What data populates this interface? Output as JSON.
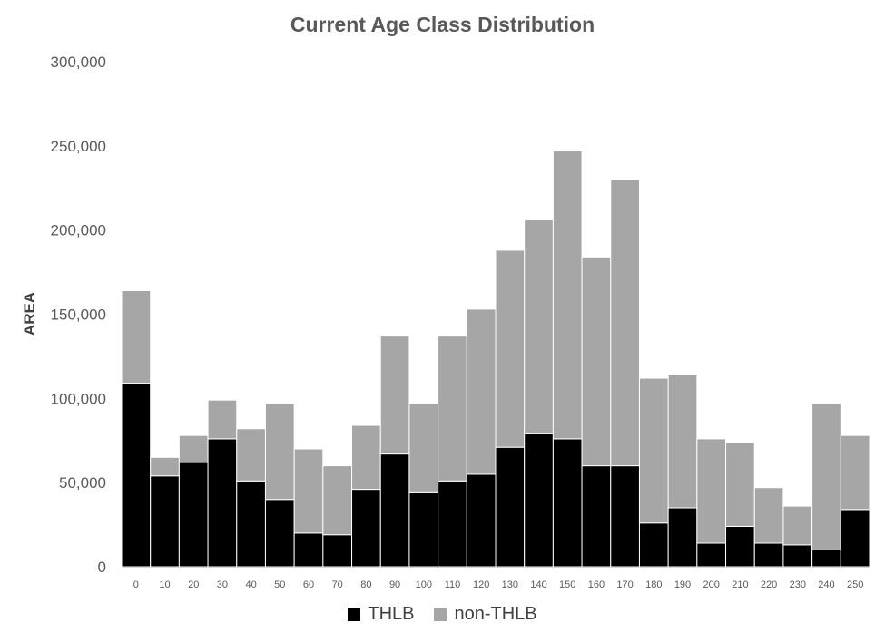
{
  "chart_data": {
    "type": "bar",
    "stacked": true,
    "title": "Current Age Class Distribution",
    "xlabel": "",
    "ylabel": "AREA",
    "ylim": [
      0,
      300000
    ],
    "yticks": [
      0,
      50000,
      100000,
      150000,
      200000,
      250000,
      300000
    ],
    "ytick_labels": [
      "0",
      "50,000",
      "100,000",
      "150,000",
      "200,000",
      "250,000",
      "300,000"
    ],
    "categories": [
      "0",
      "10",
      "20",
      "30",
      "40",
      "50",
      "60",
      "70",
      "80",
      "90",
      "100",
      "110",
      "120",
      "130",
      "140",
      "150",
      "160",
      "170",
      "180",
      "190",
      "200",
      "210",
      "220",
      "230",
      "240",
      "250"
    ],
    "series": [
      {
        "name": "THLB",
        "color": "#000000",
        "values": [
          109000,
          54000,
          62000,
          76000,
          51000,
          40000,
          20000,
          19000,
          46000,
          67000,
          44000,
          51000,
          55000,
          71000,
          79000,
          76000,
          60000,
          60000,
          26000,
          35000,
          14000,
          24000,
          14000,
          13000,
          10000,
          34000
        ]
      },
      {
        "name": "non-THLB",
        "color": "#a6a6a6",
        "values": [
          55000,
          11000,
          16000,
          23000,
          31000,
          57000,
          50000,
          41000,
          38000,
          70000,
          53000,
          86000,
          98000,
          117000,
          127000,
          171000,
          124000,
          170000,
          86000,
          79000,
          62000,
          50000,
          33000,
          23000,
          87000,
          44000
        ]
      }
    ],
    "legend_position": "bottom",
    "grid": false
  }
}
